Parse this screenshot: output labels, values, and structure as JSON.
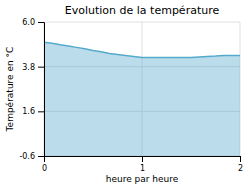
{
  "chart_data": {
    "type": "area",
    "title": "Evolution de la température",
    "xlabel": "heure par heure",
    "ylabel": "Température en °C",
    "x": [
      0.0,
      0.083,
      0.167,
      0.25,
      0.333,
      0.417,
      0.5,
      0.583,
      0.667,
      0.75,
      0.833,
      0.917,
      1.0,
      1.083,
      1.167,
      1.25,
      1.333,
      1.417,
      1.5,
      1.583,
      1.667,
      1.75,
      1.833,
      1.917,
      2.0
    ],
    "values": [
      5.0,
      4.95,
      4.88,
      4.82,
      4.75,
      4.68,
      4.6,
      4.53,
      4.45,
      4.4,
      4.35,
      4.3,
      4.25,
      4.25,
      4.25,
      4.25,
      4.25,
      4.25,
      4.25,
      4.28,
      4.3,
      4.32,
      4.35,
      4.35,
      4.35
    ],
    "color": "#55aacc",
    "xlim": [
      0,
      2
    ],
    "ylim": [
      -0.6,
      6.0
    ],
    "xticks": [
      0,
      1,
      2
    ],
    "yticks": [
      -0.6,
      1.6,
      3.8,
      {
        "value": 6.0,
        "label": "6.0"
      }
    ],
    "grid": true
  }
}
